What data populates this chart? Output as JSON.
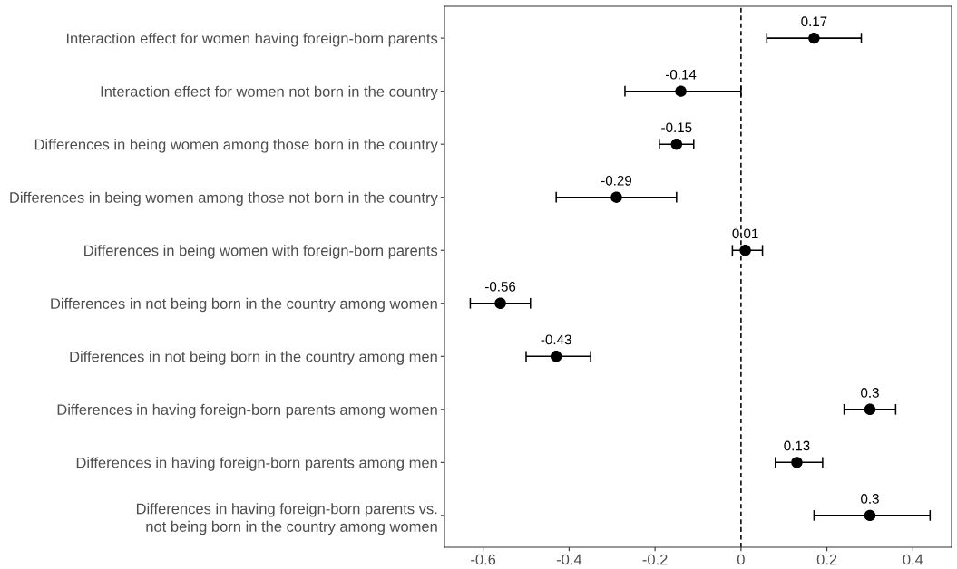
{
  "chart_data": {
    "type": "scatter",
    "orientation": "horizontal",
    "categories": [
      "Interaction effect for women having foreign-born parents",
      "Interaction effect for women not born in the country",
      "Differences in being women among those born in the country",
      "Differences in being women among those not born in the country",
      "Differences in being women with foreign-born parents",
      "Differences in not being born in the country among women",
      "Differences in not being born in the country among men",
      "Differences in having foreign-born parents among women",
      "Differences in having foreign-born parents among men",
      "Differences in having foreign-born parents vs.\nnot being born in the country among women"
    ],
    "values": [
      0.17,
      -0.14,
      -0.15,
      -0.29,
      0.01,
      -0.56,
      -0.43,
      0.3,
      0.13,
      0.3
    ],
    "errors": [
      [
        0.06,
        0.28
      ],
      [
        -0.27,
        0
      ],
      [
        -0.19,
        -0.11
      ],
      [
        -0.43,
        -0.15
      ],
      [
        -0.02,
        0.05
      ],
      [
        -0.63,
        -0.49
      ],
      [
        -0.5,
        -0.35
      ],
      [
        0.24,
        0.36
      ],
      [
        0.08,
        0.19
      ],
      [
        0.17,
        0.44
      ]
    ],
    "color": "#000000",
    "marker": "circle",
    "data_labels": true,
    "grid": false,
    "xlim": [
      -0.69,
      0.49
    ],
    "xticks": [
      -0.6,
      -0.4,
      -0.2,
      0,
      0.2,
      0.4
    ],
    "ref_lines": [
      {
        "axis": "x",
        "value": 0,
        "color": "#000000",
        "line_style": "dashed"
      }
    ]
  }
}
